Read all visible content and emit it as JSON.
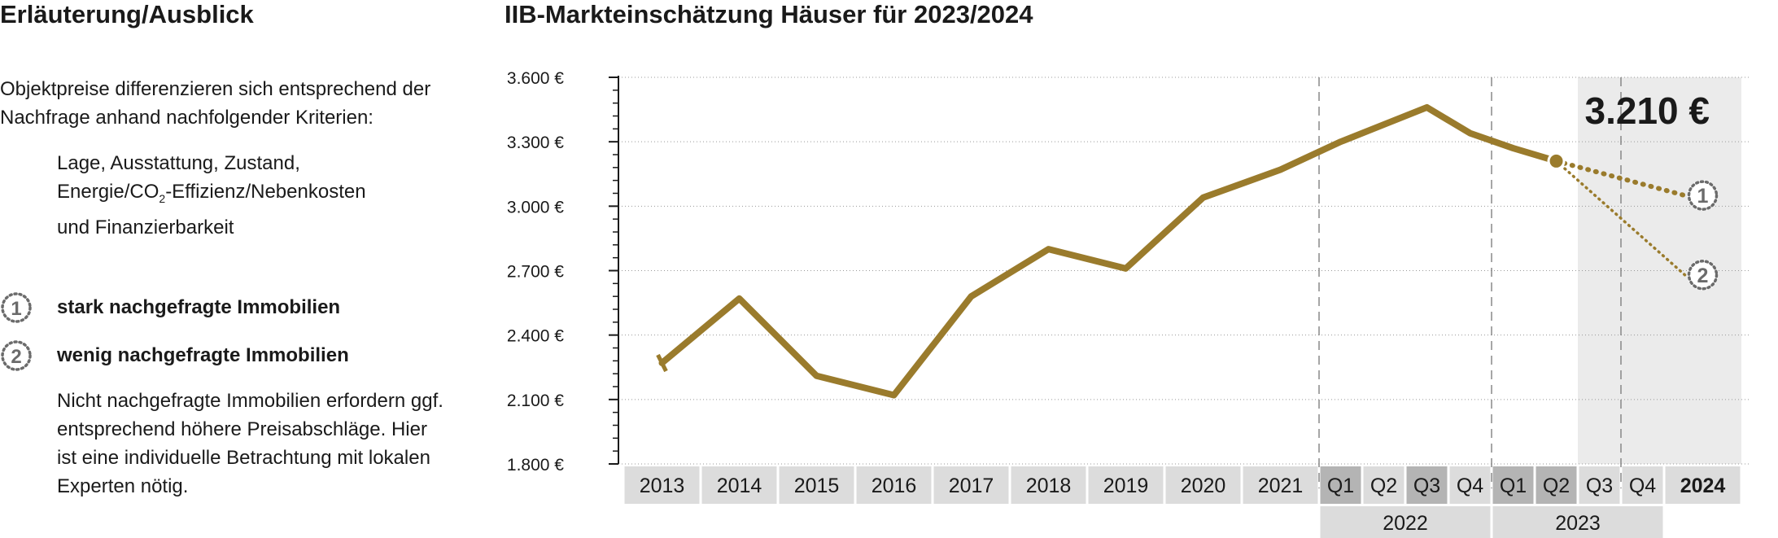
{
  "left": {
    "title": "Erläuterung/Ausblick",
    "intro": "Objektpreise differenzieren sich entsprechend der Nachfrage anhand nachfolgender Kriterien:",
    "criteria_line1": "Lage, Ausstattung, Zustand,",
    "criteria_line2_a": "Energie/CO",
    "criteria_line2_sub": "2",
    "criteria_line2_b": "-Effizienz/Nebenkosten",
    "criteria_line3": "und Finanzierbarkeit",
    "legend": [
      {
        "badge": "1",
        "label": "stark nachgefragte Immobilien"
      },
      {
        "badge": "2",
        "label": "wenig nachgefragte Immobilien"
      }
    ],
    "note": "Nicht nachgefragte Immobilien erfordern ggf. entsprechend höhere Preisabschläge. Hier ist eine individuelle Betrachtung mit lokalen Experten nötig."
  },
  "chart_data": {
    "type": "line",
    "title": "IIB-Markteinschätzung Häuser für 2023/2024",
    "ylim": [
      1800,
      3600
    ],
    "yticks": [
      "3.600 €",
      "3.300 €",
      "3.000 €",
      "2.700 €",
      "2.400 €",
      "2.100 €",
      "1.800 €"
    ],
    "ytick_values": [
      3600,
      3300,
      3000,
      2700,
      2400,
      2100,
      1800
    ],
    "categories": [
      "2013",
      "2014",
      "2015",
      "2016",
      "2017",
      "2018",
      "2019",
      "2020",
      "2021",
      "Q1",
      "Q2",
      "Q3",
      "Q4",
      "Q1",
      "Q2",
      "Q3",
      "Q4",
      "2024"
    ],
    "group_labels": [
      {
        "label": "2022",
        "categories": [
          "Q1",
          "Q2",
          "Q3",
          "Q4"
        ]
      },
      {
        "label": "2023",
        "categories": [
          "Q1",
          "Q2",
          "Q3",
          "Q4"
        ]
      }
    ],
    "series": [
      {
        "values": [
          2270,
          2570,
          2210,
          2120,
          2580,
          2800,
          2710,
          3040,
          3170,
          3300,
          3380,
          3460,
          3340,
          3270,
          3210,
          null,
          null,
          null
        ]
      }
    ],
    "forecasts": [
      {
        "badge": "1",
        "from": {
          "category_index": 14,
          "value": 3210
        },
        "to": {
          "category_index": 17,
          "value": 3050
        }
      },
      {
        "badge": "2",
        "from": {
          "category_index": 14,
          "value": 3210
        },
        "to": {
          "category_index": 17,
          "value": 2680
        }
      }
    ],
    "highlight_label": "3.210 €",
    "colors": {
      "line": "#9a7b2c",
      "forecast_shade": "#ebebeb",
      "axis_cell": "#dcdcdc",
      "quarter_cell_dark": "#b4b4b4",
      "grid": "#999999",
      "badge": "#6b6b6b"
    },
    "grid": "dotted horizontal"
  }
}
